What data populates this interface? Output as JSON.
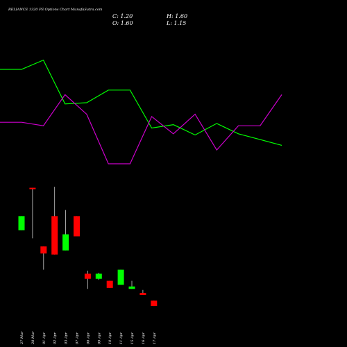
{
  "header": {
    "title": "RELIANCE 1320  PE Options  Chart MunafaSutra.com",
    "close": "C: 1.20",
    "high": "H: 1.60",
    "open": "O: 1.60",
    "low": "L: 1.15"
  },
  "colors": {
    "background": "#000000",
    "up": "#00ff00",
    "down": "#ff0000",
    "line_green": "#00ff00",
    "line_magenta": "#cc00cc",
    "text": "#ffffff"
  },
  "chart_data": [
    {
      "type": "line",
      "title": "",
      "series": [
        {
          "values": [
            8.2,
            8.2,
            9.0,
            5.2,
            5.3,
            6.4,
            6.4,
            3.1,
            3.4,
            2.5,
            3.5,
            2.6,
            2.1,
            1.6
          ]
        },
        {
          "values": [
            3.6,
            3.6,
            3.3,
            6.0,
            4.3,
            0.0,
            0.0,
            4.1,
            2.6,
            4.3,
            1.2,
            3.3,
            3.3,
            6.0
          ]
        }
      ],
      "ylim": [
        0,
        10
      ]
    },
    {
      "type": "candlestick",
      "categories": [
        "27 Mar",
        "28 Mar",
        "01 Apr",
        "02 Apr",
        "03 Apr",
        "07 Apr",
        "08 Apr",
        "09 Apr",
        "10 Apr",
        "11 Apr",
        "15 Apr",
        "16 Apr",
        "17 Apr"
      ],
      "series": [
        {
          "open": 3.4,
          "close": 4.1,
          "high": 4.1,
          "low": 3.4
        },
        {
          "open": 5.5,
          "close": 5.45,
          "high": 5.5,
          "low": 3.0
        },
        {
          "open": 2.6,
          "close": 2.25,
          "high": 2.6,
          "low": 1.45
        },
        {
          "open": 4.1,
          "close": 2.2,
          "high": 5.55,
          "low": 2.2
        },
        {
          "open": 2.4,
          "close": 3.2,
          "high": 4.4,
          "low": 2.4
        },
        {
          "open": 4.1,
          "close": 3.1,
          "high": 4.1,
          "low": 3.1
        },
        {
          "open": 1.25,
          "close": 1.0,
          "high": 1.4,
          "low": 0.5
        },
        {
          "open": 1.0,
          "close": 1.25,
          "high": 1.3,
          "low": 0.95
        },
        {
          "open": 0.9,
          "close": 0.55,
          "high": 0.9,
          "low": 0.55
        },
        {
          "open": 0.7,
          "close": 1.45,
          "high": 1.45,
          "low": 0.7
        },
        {
          "open": 0.5,
          "close": 0.62,
          "high": 0.9,
          "low": 0.5
        },
        {
          "open": 0.3,
          "close": 0.2,
          "high": 0.45,
          "low": 0.2
        },
        {
          "open": -0.08,
          "close": -0.35,
          "high": -0.08,
          "low": -0.35
        }
      ],
      "ylim": [
        -1,
        6
      ]
    }
  ]
}
